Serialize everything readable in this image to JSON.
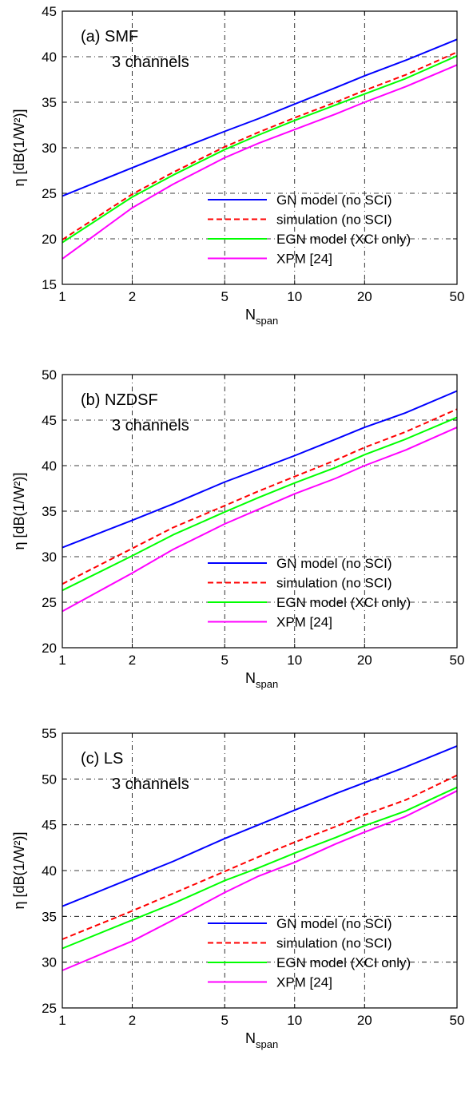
{
  "chart_data": [
    {
      "type": "line",
      "panel_label": "(a) SMF",
      "panel_sublabel": "3 channels",
      "xlabel": "N",
      "xlabel_sub": "span",
      "ylabel": "η [dB(1/W²)]",
      "xscale": "log",
      "xlim": [
        1,
        50
      ],
      "ylim": [
        15,
        45
      ],
      "xticks": [
        1,
        2,
        5,
        10,
        20,
        50
      ],
      "yticks": [
        15,
        20,
        25,
        30,
        35,
        40,
        45
      ],
      "grid": true,
      "legend_position": "lower-right",
      "series": [
        {
          "name": "GN model (no SCI)",
          "color": "#0000ff",
          "dash": "solid",
          "x": [
            1,
            2,
            3,
            5,
            7,
            10,
            15,
            20,
            30,
            50
          ],
          "y": [
            24.7,
            27.8,
            29.6,
            31.8,
            33.2,
            34.8,
            36.6,
            37.9,
            39.6,
            41.9
          ]
        },
        {
          "name": "simulation (no SCI)",
          "color": "#ff0000",
          "dash": "dashed",
          "x": [
            1,
            2,
            3,
            5,
            7,
            10,
            15,
            20,
            30,
            50
          ],
          "y": [
            19.9,
            24.9,
            27.3,
            30.1,
            31.7,
            33.3,
            35.0,
            36.3,
            38.0,
            40.5
          ]
        },
        {
          "name": "EGN model (XCI only)",
          "color": "#00ff00",
          "dash": "solid",
          "x": [
            1,
            2,
            3,
            5,
            7,
            10,
            15,
            20,
            30,
            50
          ],
          "y": [
            19.6,
            24.6,
            27.0,
            29.8,
            31.4,
            33.0,
            34.7,
            35.9,
            37.6,
            40.1
          ]
        },
        {
          "name": "XPM [24]",
          "color": "#ff00ff",
          "dash": "solid",
          "x": [
            1,
            2,
            3,
            5,
            7,
            10,
            15,
            20,
            30,
            50
          ],
          "y": [
            17.8,
            23.4,
            26.0,
            28.9,
            30.5,
            32.0,
            33.7,
            35.0,
            36.7,
            39.1
          ]
        }
      ]
    },
    {
      "type": "line",
      "panel_label": "(b) NZDSF",
      "panel_sublabel": "3 channels",
      "xlabel": "N",
      "xlabel_sub": "span",
      "ylabel": "η [dB(1/W²)]",
      "xscale": "log",
      "xlim": [
        1,
        50
      ],
      "ylim": [
        20,
        50
      ],
      "xticks": [
        1,
        2,
        5,
        10,
        20,
        50
      ],
      "yticks": [
        20,
        25,
        30,
        35,
        40,
        45,
        50
      ],
      "grid": true,
      "legend_position": "lower-right",
      "series": [
        {
          "name": "GN model (no SCI)",
          "color": "#0000ff",
          "dash": "solid",
          "x": [
            1,
            2,
            3,
            5,
            7,
            10,
            15,
            20,
            30,
            50
          ],
          "y": [
            31.0,
            34.0,
            35.8,
            38.2,
            39.6,
            41.1,
            42.9,
            44.2,
            45.8,
            48.2
          ]
        },
        {
          "name": "simulation (no SCI)",
          "color": "#ff0000",
          "dash": "dashed",
          "x": [
            1,
            2,
            3,
            5,
            7,
            10,
            15,
            20,
            30,
            50
          ],
          "y": [
            27.0,
            30.9,
            33.2,
            35.6,
            37.2,
            38.8,
            40.6,
            42.0,
            43.7,
            46.2
          ]
        },
        {
          "name": "EGN model (XCI only)",
          "color": "#00ff00",
          "dash": "solid",
          "x": [
            1,
            2,
            3,
            5,
            7,
            10,
            15,
            20,
            30,
            50
          ],
          "y": [
            26.3,
            30.1,
            32.4,
            34.9,
            36.5,
            38.1,
            39.8,
            41.2,
            42.9,
            45.3
          ]
        },
        {
          "name": "XPM [24]",
          "color": "#ff00ff",
          "dash": "solid",
          "x": [
            1,
            2,
            3,
            5,
            7,
            10,
            15,
            20,
            30,
            50
          ],
          "y": [
            24.0,
            28.2,
            30.8,
            33.6,
            35.2,
            36.9,
            38.6,
            40.0,
            41.7,
            44.2
          ]
        }
      ]
    },
    {
      "type": "line",
      "panel_label": "(c) LS",
      "panel_sublabel": "3 channels",
      "xlabel": "N",
      "xlabel_sub": "span",
      "ylabel": "η [dB(1/W²)]",
      "xscale": "log",
      "xlim": [
        1,
        50
      ],
      "ylim": [
        25,
        55
      ],
      "xticks": [
        1,
        2,
        5,
        10,
        20,
        50
      ],
      "yticks": [
        25,
        30,
        35,
        40,
        45,
        50,
        55
      ],
      "grid": true,
      "legend_position": "lower-right",
      "series": [
        {
          "name": "GN model (no SCI)",
          "color": "#0000ff",
          "dash": "solid",
          "x": [
            1,
            2,
            3,
            5,
            7,
            10,
            15,
            20,
            30,
            50
          ],
          "y": [
            36.1,
            39.2,
            41.0,
            43.5,
            45.0,
            46.6,
            48.4,
            49.6,
            51.3,
            53.6
          ]
        },
        {
          "name": "simulation (no SCI)",
          "color": "#ff0000",
          "dash": "dashed",
          "x": [
            1,
            2,
            3,
            5,
            7,
            10,
            15,
            20,
            30,
            50
          ],
          "y": [
            32.5,
            35.6,
            37.5,
            39.9,
            41.5,
            43.1,
            44.8,
            46.1,
            47.7,
            50.4
          ]
        },
        {
          "name": "EGN model (XCI only)",
          "color": "#00ff00",
          "dash": "solid",
          "x": [
            1,
            2,
            3,
            5,
            7,
            10,
            15,
            20,
            30,
            50
          ],
          "y": [
            31.5,
            34.6,
            36.4,
            38.9,
            40.3,
            41.9,
            43.6,
            44.9,
            46.5,
            49.1
          ]
        },
        {
          "name": "XPM [24]",
          "color": "#ff00ff",
          "dash": "solid",
          "x": [
            1,
            2,
            3,
            5,
            7,
            10,
            15,
            20,
            30,
            50
          ],
          "y": [
            29.1,
            32.3,
            34.6,
            37.6,
            39.4,
            40.9,
            42.9,
            44.2,
            45.9,
            48.7
          ]
        }
      ]
    }
  ]
}
